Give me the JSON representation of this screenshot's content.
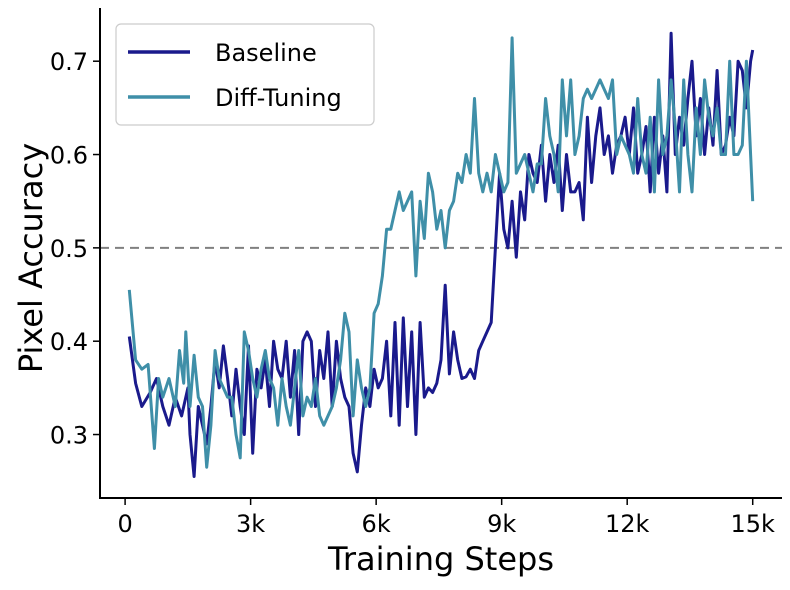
{
  "chart_data": {
    "type": "line",
    "xlabel": "Training Steps",
    "ylabel": "Pixel Accuracy",
    "xlim": [
      -600,
      15700
    ],
    "ylim": [
      0.232,
      0.757
    ],
    "x_ticks": [
      0,
      3000,
      6000,
      9000,
      12000,
      15000
    ],
    "x_tick_labels": [
      "0",
      "3k",
      "6k",
      "9k",
      "12k",
      "15k"
    ],
    "y_ticks": [
      0.3,
      0.4,
      0.5,
      0.6,
      0.7
    ],
    "y_tick_labels": [
      "0.3",
      "0.4",
      "0.5",
      "0.6",
      "0.7"
    ],
    "reference_line": {
      "y": 0.5,
      "style": "dashed",
      "color": "#808080"
    },
    "grid": false,
    "legend_position": "top-left",
    "series": [
      {
        "name": "Baseline",
        "color": "#1a1a8c",
        "points": [
          [
            100,
            0.405
          ],
          [
            250,
            0.355
          ],
          [
            400,
            0.33
          ],
          [
            600,
            0.345
          ],
          [
            750,
            0.36
          ],
          [
            900,
            0.33
          ],
          [
            1050,
            0.31
          ],
          [
            1200,
            0.34
          ],
          [
            1350,
            0.32
          ],
          [
            1500,
            0.35
          ],
          [
            1550,
            0.3
          ],
          [
            1650,
            0.255
          ],
          [
            1750,
            0.33
          ],
          [
            1850,
            0.31
          ],
          [
            1950,
            0.29
          ],
          [
            2050,
            0.33
          ],
          [
            2150,
            0.38
          ],
          [
            2250,
            0.35
          ],
          [
            2350,
            0.395
          ],
          [
            2450,
            0.36
          ],
          [
            2550,
            0.32
          ],
          [
            2650,
            0.37
          ],
          [
            2750,
            0.33
          ],
          [
            2850,
            0.3
          ],
          [
            2950,
            0.395
          ],
          [
            3050,
            0.28
          ],
          [
            3150,
            0.37
          ],
          [
            3250,
            0.35
          ],
          [
            3350,
            0.38
          ],
          [
            3450,
            0.33
          ],
          [
            3550,
            0.4
          ],
          [
            3650,
            0.37
          ],
          [
            3750,
            0.36
          ],
          [
            3850,
            0.4
          ],
          [
            3950,
            0.34
          ],
          [
            4050,
            0.39
          ],
          [
            4150,
            0.3
          ],
          [
            4250,
            0.4
          ],
          [
            4350,
            0.41
          ],
          [
            4450,
            0.4
          ],
          [
            4550,
            0.33
          ],
          [
            4650,
            0.39
          ],
          [
            4750,
            0.36
          ],
          [
            4850,
            0.41
          ],
          [
            4950,
            0.33
          ],
          [
            5050,
            0.4
          ],
          [
            5150,
            0.36
          ],
          [
            5250,
            0.34
          ],
          [
            5350,
            0.33
          ],
          [
            5450,
            0.28
          ],
          [
            5550,
            0.26
          ],
          [
            5650,
            0.31
          ],
          [
            5750,
            0.35
          ],
          [
            5850,
            0.33
          ],
          [
            5950,
            0.37
          ],
          [
            6050,
            0.35
          ],
          [
            6150,
            0.36
          ],
          [
            6250,
            0.4
          ],
          [
            6350,
            0.32
          ],
          [
            6450,
            0.42
          ],
          [
            6550,
            0.31
          ],
          [
            6650,
            0.425
          ],
          [
            6750,
            0.33
          ],
          [
            6850,
            0.41
          ],
          [
            6950,
            0.3
          ],
          [
            7050,
            0.42
          ],
          [
            7150,
            0.34
          ],
          [
            7250,
            0.35
          ],
          [
            7350,
            0.345
          ],
          [
            7450,
            0.355
          ],
          [
            7550,
            0.38
          ],
          [
            7650,
            0.46
          ],
          [
            7750,
            0.365
          ],
          [
            7850,
            0.41
          ],
          [
            7950,
            0.38
          ],
          [
            8050,
            0.36
          ],
          [
            8150,
            0.362
          ],
          [
            8250,
            0.37
          ],
          [
            8350,
            0.36
          ],
          [
            8450,
            0.39
          ],
          [
            8550,
            0.4
          ],
          [
            8650,
            0.41
          ],
          [
            8750,
            0.42
          ],
          [
            8850,
            0.5
          ],
          [
            8950,
            0.58
          ],
          [
            9050,
            0.52
          ],
          [
            9150,
            0.5
          ],
          [
            9250,
            0.55
          ],
          [
            9350,
            0.49
          ],
          [
            9450,
            0.56
          ],
          [
            9550,
            0.53
          ],
          [
            9650,
            0.6
          ],
          [
            9750,
            0.58
          ],
          [
            9850,
            0.57
          ],
          [
            9950,
            0.61
          ],
          [
            10050,
            0.55
          ],
          [
            10150,
            0.6
          ],
          [
            10250,
            0.57
          ],
          [
            10350,
            0.61
          ],
          [
            10450,
            0.54
          ],
          [
            10550,
            0.6
          ],
          [
            10650,
            0.56
          ],
          [
            10750,
            0.56
          ],
          [
            10850,
            0.57
          ],
          [
            10950,
            0.53
          ],
          [
            11050,
            0.64
          ],
          [
            11150,
            0.57
          ],
          [
            11250,
            0.62
          ],
          [
            11350,
            0.65
          ],
          [
            11450,
            0.6
          ],
          [
            11550,
            0.62
          ],
          [
            11650,
            0.58
          ],
          [
            11750,
            0.61
          ],
          [
            11850,
            0.62
          ],
          [
            11950,
            0.64
          ],
          [
            12050,
            0.6
          ],
          [
            12150,
            0.65
          ],
          [
            12250,
            0.58
          ],
          [
            12350,
            0.6
          ],
          [
            12450,
            0.63
          ],
          [
            12550,
            0.56
          ],
          [
            12650,
            0.64
          ],
          [
            12750,
            0.58
          ],
          [
            12850,
            0.62
          ],
          [
            12950,
            0.56
          ],
          [
            13050,
            0.73
          ],
          [
            13150,
            0.6
          ],
          [
            13250,
            0.64
          ],
          [
            13350,
            0.61
          ],
          [
            13450,
            0.66
          ],
          [
            13550,
            0.7
          ],
          [
            13650,
            0.62
          ],
          [
            13750,
            0.66
          ],
          [
            13850,
            0.6
          ],
          [
            13950,
            0.65
          ],
          [
            14050,
            0.61
          ],
          [
            14150,
            0.69
          ],
          [
            14250,
            0.6
          ],
          [
            14350,
            0.61
          ],
          [
            14450,
            0.64
          ],
          [
            14550,
            0.62
          ],
          [
            14650,
            0.7
          ],
          [
            14750,
            0.69
          ],
          [
            14850,
            0.65
          ],
          [
            14950,
            0.7
          ],
          [
            15000,
            0.712
          ]
        ]
      },
      {
        "name": "Diff-Tuning",
        "color": "#3f8fa8",
        "points": [
          [
            100,
            0.455
          ],
          [
            250,
            0.38
          ],
          [
            400,
            0.37
          ],
          [
            550,
            0.375
          ],
          [
            700,
            0.285
          ],
          [
            800,
            0.36
          ],
          [
            900,
            0.34
          ],
          [
            1050,
            0.36
          ],
          [
            1200,
            0.33
          ],
          [
            1300,
            0.39
          ],
          [
            1400,
            0.355
          ],
          [
            1450,
            0.41
          ],
          [
            1550,
            0.33
          ],
          [
            1650,
            0.385
          ],
          [
            1750,
            0.34
          ],
          [
            1850,
            0.33
          ],
          [
            1950,
            0.265
          ],
          [
            2050,
            0.31
          ],
          [
            2150,
            0.39
          ],
          [
            2250,
            0.36
          ],
          [
            2350,
            0.35
          ],
          [
            2450,
            0.34
          ],
          [
            2550,
            0.34
          ],
          [
            2650,
            0.3
          ],
          [
            2750,
            0.275
          ],
          [
            2850,
            0.41
          ],
          [
            2950,
            0.39
          ],
          [
            3050,
            0.36
          ],
          [
            3150,
            0.34
          ],
          [
            3250,
            0.37
          ],
          [
            3350,
            0.39
          ],
          [
            3450,
            0.36
          ],
          [
            3550,
            0.35
          ],
          [
            3650,
            0.31
          ],
          [
            3750,
            0.36
          ],
          [
            3850,
            0.33
          ],
          [
            3950,
            0.31
          ],
          [
            4050,
            0.35
          ],
          [
            4150,
            0.39
          ],
          [
            4250,
            0.32
          ],
          [
            4350,
            0.34
          ],
          [
            4450,
            0.33
          ],
          [
            4550,
            0.36
          ],
          [
            4650,
            0.32
          ],
          [
            4750,
            0.31
          ],
          [
            4850,
            0.32
          ],
          [
            4950,
            0.33
          ],
          [
            5050,
            0.35
          ],
          [
            5150,
            0.38
          ],
          [
            5250,
            0.43
          ],
          [
            5350,
            0.41
          ],
          [
            5450,
            0.32
          ],
          [
            5550,
            0.38
          ],
          [
            5650,
            0.35
          ],
          [
            5750,
            0.33
          ],
          [
            5850,
            0.35
          ],
          [
            5950,
            0.43
          ],
          [
            6050,
            0.44
          ],
          [
            6150,
            0.47
          ],
          [
            6250,
            0.52
          ],
          [
            6350,
            0.52
          ],
          [
            6450,
            0.54
          ],
          [
            6550,
            0.56
          ],
          [
            6650,
            0.54
          ],
          [
            6750,
            0.55
          ],
          [
            6850,
            0.56
          ],
          [
            6950,
            0.47
          ],
          [
            7050,
            0.55
          ],
          [
            7150,
            0.51
          ],
          [
            7250,
            0.58
          ],
          [
            7350,
            0.56
          ],
          [
            7450,
            0.52
          ],
          [
            7550,
            0.54
          ],
          [
            7650,
            0.5
          ],
          [
            7750,
            0.54
          ],
          [
            7850,
            0.55
          ],
          [
            7950,
            0.58
          ],
          [
            8050,
            0.57
          ],
          [
            8150,
            0.6
          ],
          [
            8250,
            0.58
          ],
          [
            8350,
            0.66
          ],
          [
            8450,
            0.58
          ],
          [
            8550,
            0.56
          ],
          [
            8650,
            0.58
          ],
          [
            8750,
            0.56
          ],
          [
            8850,
            0.6
          ],
          [
            8950,
            0.58
          ],
          [
            9050,
            0.56
          ],
          [
            9150,
            0.57
          ],
          [
            9250,
            0.725
          ],
          [
            9350,
            0.58
          ],
          [
            9450,
            0.59
          ],
          [
            9550,
            0.6
          ],
          [
            9650,
            0.58
          ],
          [
            9750,
            0.56
          ],
          [
            9850,
            0.59
          ],
          [
            9950,
            0.59
          ],
          [
            10050,
            0.66
          ],
          [
            10150,
            0.62
          ],
          [
            10250,
            0.6
          ],
          [
            10350,
            0.56
          ],
          [
            10450,
            0.68
          ],
          [
            10550,
            0.62
          ],
          [
            10650,
            0.68
          ],
          [
            10750,
            0.6
          ],
          [
            10850,
            0.62
          ],
          [
            10950,
            0.66
          ],
          [
            11050,
            0.67
          ],
          [
            11150,
            0.66
          ],
          [
            11250,
            0.67
          ],
          [
            11350,
            0.68
          ],
          [
            11450,
            0.67
          ],
          [
            11550,
            0.66
          ],
          [
            11650,
            0.68
          ],
          [
            11750,
            0.6
          ],
          [
            11850,
            0.62
          ],
          [
            11950,
            0.61
          ],
          [
            12050,
            0.6
          ],
          [
            12150,
            0.58
          ],
          [
            12250,
            0.66
          ],
          [
            12350,
            0.6
          ],
          [
            12450,
            0.58
          ],
          [
            12550,
            0.64
          ],
          [
            12650,
            0.56
          ],
          [
            12750,
            0.68
          ],
          [
            12850,
            0.6
          ],
          [
            12950,
            0.62
          ],
          [
            13050,
            0.68
          ],
          [
            13150,
            0.63
          ],
          [
            13250,
            0.56
          ],
          [
            13350,
            0.68
          ],
          [
            13450,
            0.6
          ],
          [
            13550,
            0.56
          ],
          [
            13650,
            0.65
          ],
          [
            13750,
            0.6
          ],
          [
            13850,
            0.68
          ],
          [
            13950,
            0.64
          ],
          [
            14050,
            0.62
          ],
          [
            14150,
            0.65
          ],
          [
            14250,
            0.6
          ],
          [
            14350,
            0.6
          ],
          [
            14450,
            0.7
          ],
          [
            14550,
            0.6
          ],
          [
            14650,
            0.6
          ],
          [
            14750,
            0.61
          ],
          [
            14850,
            0.7
          ],
          [
            14950,
            0.6
          ],
          [
            15000,
            0.55
          ]
        ]
      }
    ]
  }
}
